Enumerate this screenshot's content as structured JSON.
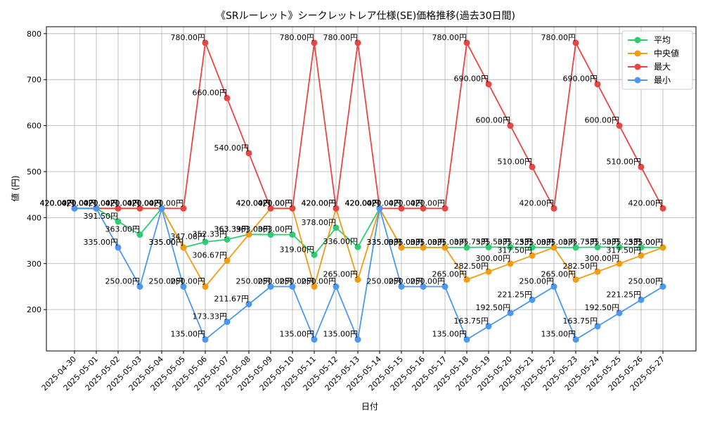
{
  "chart_data": {
    "type": "line",
    "title": "《SRルーレット》シークレットレア仕様(SE)価格推移(過去30日間)",
    "xlabel": "日付",
    "ylabel": "値 (円)",
    "ylim": [
      110,
      815
    ],
    "yticks": [
      200,
      300,
      400,
      500,
      600,
      700,
      800
    ],
    "grid": true,
    "legend_position": "top-right",
    "label_suffix": "円",
    "categories": [
      "2025-04-30",
      "2025-05-01",
      "2025-05-02",
      "2025-05-03",
      "2025-05-04",
      "2025-05-05",
      "2025-05-06",
      "2025-05-07",
      "2025-05-08",
      "2025-05-09",
      "2025-05-10",
      "2025-05-11",
      "2025-05-12",
      "2025-05-13",
      "2025-05-14",
      "2025-05-15",
      "2025-05-16",
      "2025-05-17",
      "2025-05-18",
      "2025-05-19",
      "2025-05-20",
      "2025-05-21",
      "2025-05-22",
      "2025-05-23",
      "2025-05-24",
      "2025-05-25",
      "2025-05-26",
      "2025-05-27"
    ],
    "series": [
      {
        "name": "平均",
        "color": "#2ecc71",
        "values": [
          420.0,
          420.0,
          391.5,
          363.0,
          420.0,
          335.0,
          347.08,
          352.33,
          363.39,
          363.0,
          363.0,
          319.0,
          378.0,
          336.0,
          420.0,
          335.0,
          335.0,
          335.0,
          335.0,
          335.75,
          335.5,
          335.25,
          335.0,
          335.0,
          335.75,
          335.5,
          335.25,
          335.0
        ]
      },
      {
        "name": "中央値",
        "color": "#f39c12",
        "values": [
          420.0,
          420.0,
          420.0,
          420.0,
          420.0,
          335.0,
          250.0,
          306.67,
          363.33,
          420.0,
          420.0,
          250.0,
          420.0,
          265.0,
          420.0,
          335.0,
          335.0,
          335.0,
          265.0,
          282.5,
          300.0,
          317.5,
          335.0,
          265.0,
          282.5,
          300.0,
          317.5,
          335.0
        ]
      },
      {
        "name": "最大",
        "color": "#e84545",
        "values": [
          420.0,
          420.0,
          420.0,
          420.0,
          420.0,
          420.0,
          780.0,
          660.0,
          540.0,
          420.0,
          420.0,
          780.0,
          420.0,
          780.0,
          420.0,
          420.0,
          420.0,
          420.0,
          780.0,
          690.0,
          600.0,
          510.0,
          420.0,
          780.0,
          690.0,
          600.0,
          510.0,
          420.0
        ]
      },
      {
        "name": "最小",
        "color": "#4a98f0",
        "values": [
          420.0,
          420.0,
          335.0,
          250.0,
          420.0,
          250.0,
          135.0,
          173.33,
          211.67,
          250.0,
          250.0,
          135.0,
          250.0,
          135.0,
          420.0,
          250.0,
          250.0,
          250.0,
          135.0,
          163.75,
          192.5,
          221.25,
          250.0,
          135.0,
          163.75,
          192.5,
          221.25,
          250.0
        ]
      }
    ]
  }
}
